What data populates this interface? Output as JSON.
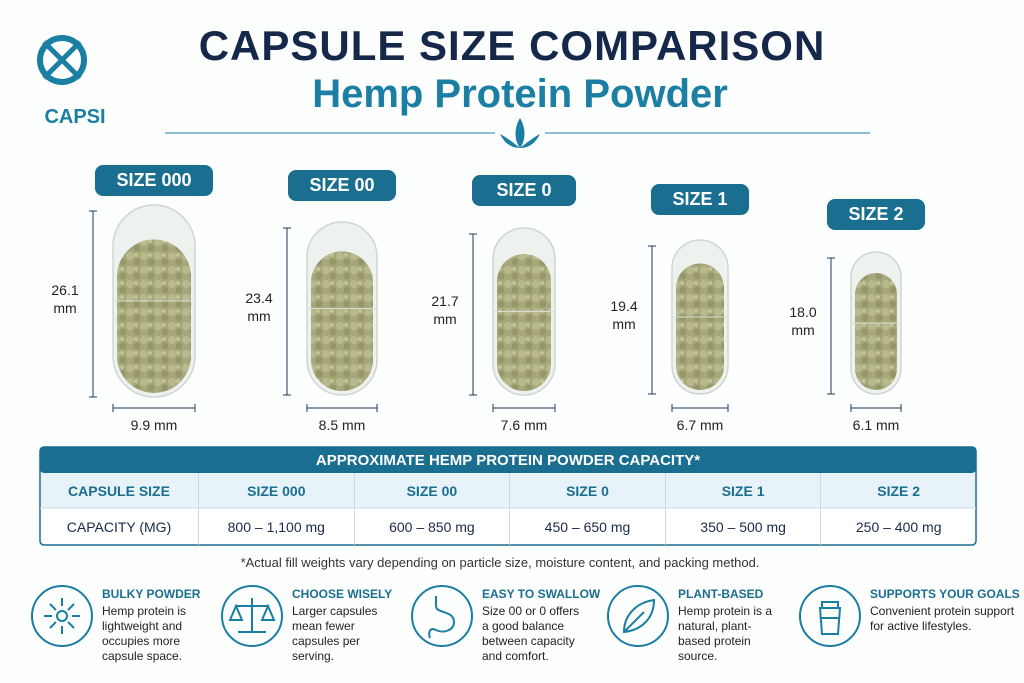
{
  "header": {
    "logo": "CAPSI",
    "title": "CAPSULE SIZE COMPARISON",
    "subtitle": "Hemp Protein Powder"
  },
  "capsules": [
    {
      "size": "SIZE 000",
      "length": "26.1 mm",
      "width": "9.9 mm"
    },
    {
      "size": "SIZE 00",
      "length": "23.4 mm",
      "width": "8.5 mm"
    },
    {
      "size": "SIZE 0",
      "length": "21.7 mm",
      "width": "7.6 mm"
    },
    {
      "size": "SIZE 1",
      "length": "19.4 mm",
      "width": "6.7 mm"
    },
    {
      "size": "SIZE 2",
      "length": "18.0 mm",
      "width": "6.1 mm"
    }
  ],
  "table": {
    "title": "APPROXIMATE HEMP PROTEIN POWDER CAPACITY*",
    "header": [
      "CAPSULE SIZE",
      "SIZE 000",
      "SIZE 00",
      "SIZE 0",
      "SIZE 1",
      "SIZE 2"
    ],
    "rows": [
      [
        "CAPACITY (MG)",
        "800 – 1,100 mg",
        "600 – 850 mg",
        "450 – 650 mg",
        "350 – 500 mg",
        "250 – 400 mg"
      ]
    ]
  },
  "footnote": "*Actual fill weights vary depending on particle size, moisture content, and packing method.",
  "features": [
    {
      "title": "BULKY POWDER",
      "text": "Hemp protein is lightweight and occupies more capsule space."
    },
    {
      "title": "CHOOSE WISELY",
      "text": "Larger capsules mean fewer capsules per serving."
    },
    {
      "title": "EASY TO SWALLOW",
      "text": "Size 00 or 0 offers a good balance between capacity and comfort."
    },
    {
      "title": "PLANT-BASED",
      "text": "Hemp protein is a natural, plant-based protein source."
    },
    {
      "title": "SUPPORTS YOUR GOALS",
      "text": "Convenient protein support for active lifestyles."
    }
  ]
}
